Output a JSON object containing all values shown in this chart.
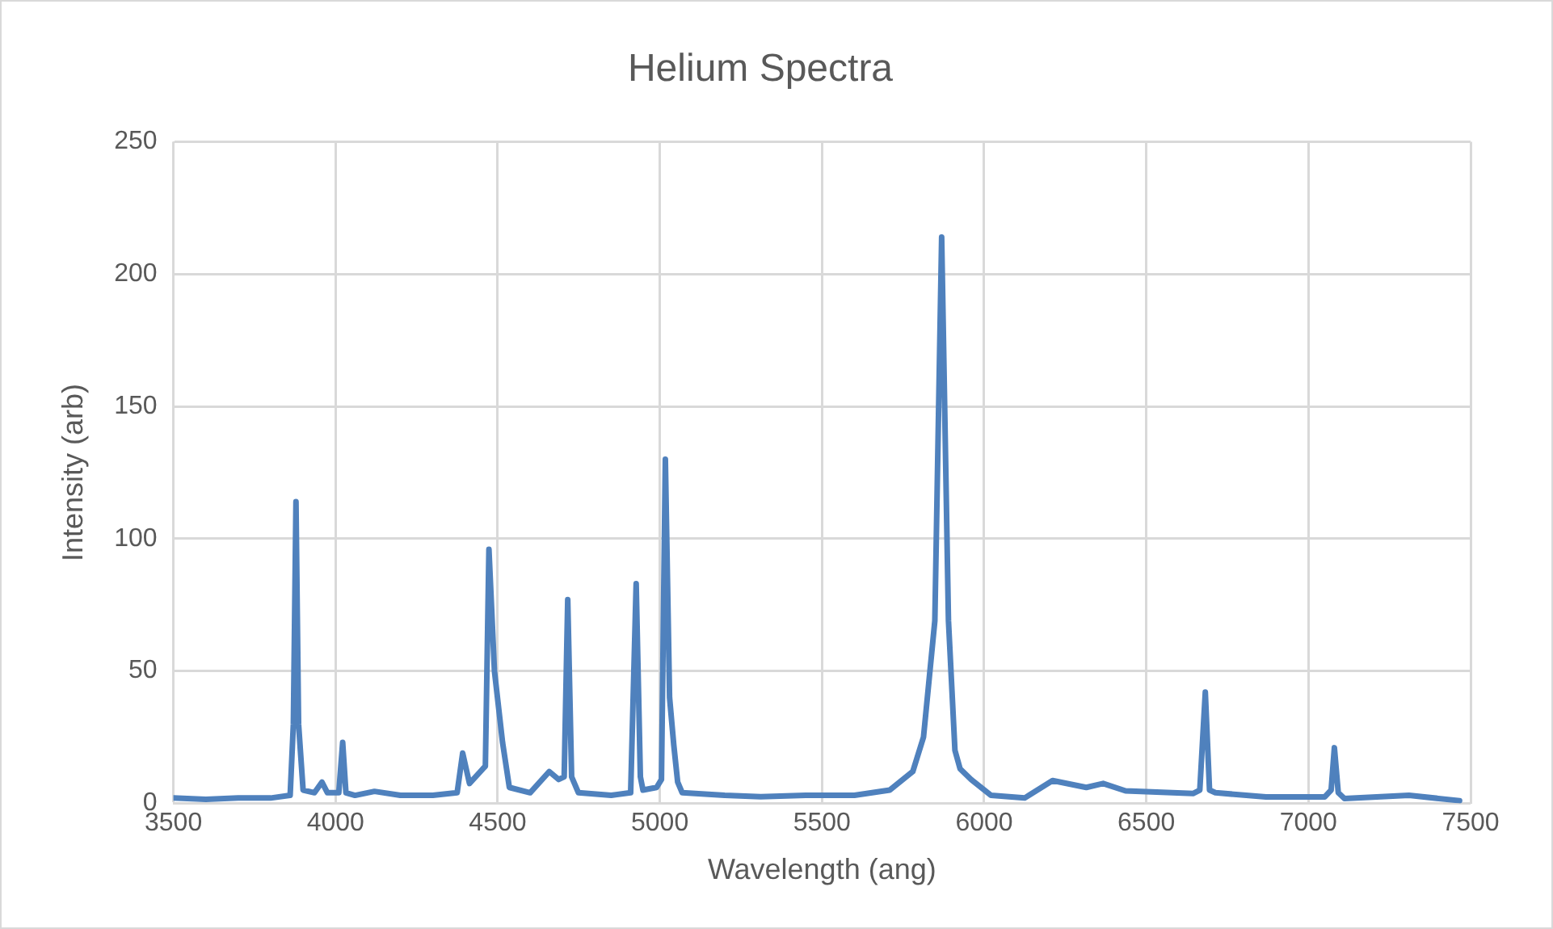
{
  "chart_data": {
    "type": "line",
    "title": "Helium Spectra",
    "xlabel": "Wavelength (ang)",
    "ylabel": "Intensity (arb)",
    "x": [
      3500,
      3600,
      3700,
      3800,
      3860,
      3870,
      3878,
      3886,
      3900,
      3935,
      3958,
      3975,
      4010,
      4022,
      4032,
      4060,
      4120,
      4200,
      4300,
      4375,
      4392,
      4413,
      4454,
      4462,
      4473,
      4490,
      4515,
      4536,
      4600,
      4659,
      4688,
      4705,
      4716,
      4728,
      4749,
      4850,
      4910,
      4927,
      4940,
      4948,
      4990,
      5005,
      5017,
      5030,
      5043,
      5055,
      5069,
      5200,
      5311,
      5450,
      5600,
      5709,
      5780,
      5813,
      5848,
      5869,
      5890,
      5910,
      5926,
      5960,
      6021,
      6125,
      6211,
      6315,
      6367,
      6436,
      6644,
      6665,
      6682,
      6695,
      6713,
      6869,
      7050,
      7070,
      7080,
      7092,
      7111,
      7310,
      7466
    ],
    "series": [
      {
        "color": "#4f81bd",
        "values": [
          2,
          1.5,
          2,
          2,
          3,
          30,
          114,
          30,
          5,
          4,
          8,
          4,
          4,
          23,
          4,
          3,
          4.5,
          3,
          3,
          4,
          19,
          7.5,
          13,
          14,
          96,
          50,
          23,
          6,
          4,
          12,
          9,
          10,
          77,
          10,
          4,
          3,
          4,
          83,
          10,
          5,
          6,
          9,
          130,
          40,
          22,
          8,
          4,
          3,
          2.5,
          3,
          3,
          5,
          12,
          25,
          69,
          214,
          69,
          20,
          13,
          9,
          3,
          2,
          8.6,
          6,
          7.5,
          4.7,
          3.7,
          5,
          42,
          5,
          4,
          2.4,
          2.4,
          5,
          21,
          4,
          1.8,
          3,
          1
        ]
      }
    ],
    "xlim": [
      3500,
      7500
    ],
    "xticks": [
      3500,
      4000,
      4500,
      5000,
      5500,
      6000,
      6500,
      7000,
      7500
    ],
    "ylim": [
      0,
      250
    ],
    "yticks": [
      0,
      50,
      100,
      150,
      200,
      250
    ],
    "grid": true,
    "legend": false,
    "marker": "none",
    "line_style": "solid"
  }
}
